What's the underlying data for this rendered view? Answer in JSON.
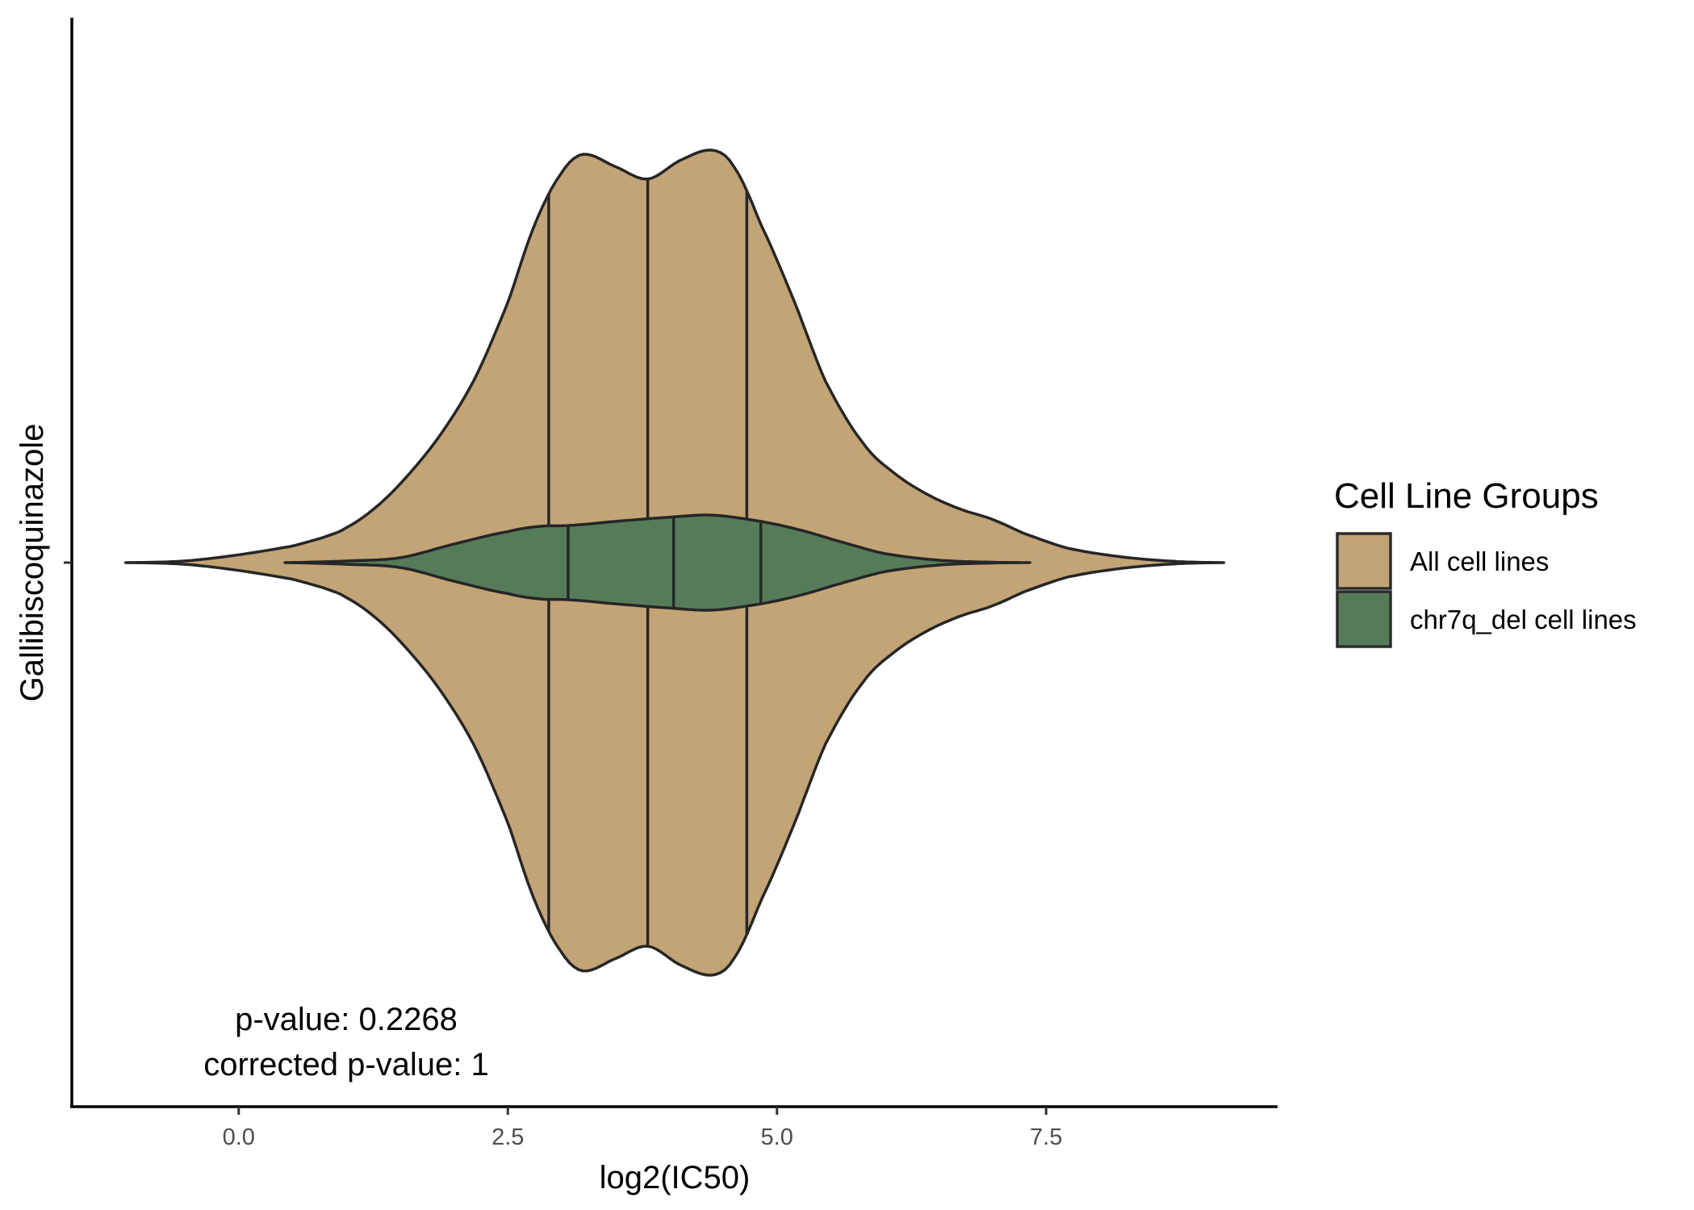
{
  "chart_data": {
    "type": "violin",
    "orientation": "horizontal",
    "title": "",
    "xlabel": "log2(IC50)",
    "ylabel": "Gallibiscoquinazole",
    "xlim": [
      -1.55,
      9.65
    ],
    "x_ticks": [
      0.0,
      2.5,
      5.0,
      7.5
    ],
    "x_tick_labels": [
      "0.0",
      "2.5",
      "5.0",
      "7.5"
    ],
    "grid": false,
    "legend": {
      "title": "Cell Line Groups",
      "placement": "right",
      "items": [
        {
          "label": "All cell lines",
          "color": "#c2a476"
        },
        {
          "label": "chr7q_del cell lines",
          "color": "#567b59"
        }
      ]
    },
    "series": [
      {
        "name": "All cell lines",
        "color": "#c2a476",
        "range": [
          -1.05,
          9.15
        ],
        "quantiles": [
          2.88,
          3.8,
          4.72
        ],
        "density": [
          [
            -1.05,
            0.0
          ],
          [
            -0.5,
            0.004
          ],
          [
            0.0,
            0.019
          ],
          [
            0.5,
            0.04
          ],
          [
            0.8,
            0.062
          ],
          [
            1.0,
            0.085
          ],
          [
            1.3,
            0.14
          ],
          [
            1.6,
            0.22
          ],
          [
            1.9,
            0.32
          ],
          [
            2.2,
            0.45
          ],
          [
            2.5,
            0.63
          ],
          [
            2.75,
            0.82
          ],
          [
            3.0,
            0.945
          ],
          [
            3.2,
            0.99
          ],
          [
            3.5,
            0.96
          ],
          [
            3.8,
            0.93
          ],
          [
            4.1,
            0.975
          ],
          [
            4.4,
            1.0
          ],
          [
            4.6,
            0.96
          ],
          [
            4.85,
            0.82
          ],
          [
            5.15,
            0.64
          ],
          [
            5.45,
            0.44
          ],
          [
            5.8,
            0.29
          ],
          [
            6.1,
            0.215
          ],
          [
            6.4,
            0.165
          ],
          [
            6.7,
            0.13
          ],
          [
            7.0,
            0.105
          ],
          [
            7.3,
            0.07
          ],
          [
            7.7,
            0.035
          ],
          [
            8.2,
            0.014
          ],
          [
            8.7,
            0.003
          ],
          [
            9.15,
            0.0
          ]
        ]
      },
      {
        "name": "chr7q_del cell lines",
        "color": "#567b59",
        "range": [
          0.43,
          7.35
        ],
        "quantiles": [
          3.06,
          4.04,
          4.85
        ],
        "density": [
          [
            0.43,
            0.0
          ],
          [
            1.0,
            0.004
          ],
          [
            1.5,
            0.012
          ],
          [
            2.0,
            0.045
          ],
          [
            2.5,
            0.075
          ],
          [
            2.8,
            0.088
          ],
          [
            3.06,
            0.09
          ],
          [
            3.5,
            0.1
          ],
          [
            4.0,
            0.11
          ],
          [
            4.4,
            0.115
          ],
          [
            4.85,
            0.1
          ],
          [
            5.2,
            0.08
          ],
          [
            5.6,
            0.05
          ],
          [
            6.0,
            0.022
          ],
          [
            6.5,
            0.006
          ],
          [
            7.0,
            0.001
          ],
          [
            7.35,
            0.0
          ]
        ]
      }
    ],
    "annotations": [
      "p-value: 0.2268",
      "corrected p-value: 1"
    ]
  }
}
